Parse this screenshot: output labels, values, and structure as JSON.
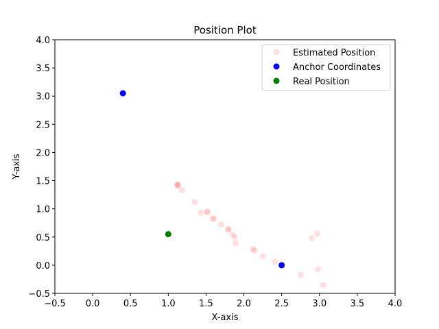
{
  "chart_data": {
    "type": "scatter",
    "title": "Position Plot",
    "xlabel": "X-axis",
    "ylabel": "Y-axis",
    "xlim": [
      -0.5,
      4.0
    ],
    "ylim": [
      -0.5,
      4.0
    ],
    "xticks": [
      "−0.5",
      "0.0",
      "0.5",
      "1.0",
      "1.5",
      "2.0",
      "2.5",
      "3.0",
      "3.5",
      "4.0"
    ],
    "yticks": [
      "−0.5",
      "0.0",
      "0.5",
      "1.0",
      "1.5",
      "2.0",
      "2.5",
      "3.0",
      "3.5",
      "4.0"
    ],
    "grid": false,
    "legend_position": "top-right",
    "series": [
      {
        "name": "Estimated Position",
        "color": "#ff0000",
        "alpha": 0.12,
        "points": [
          [
            1.12,
            1.43
          ],
          [
            1.13,
            1.42
          ],
          [
            1.12,
            1.42
          ],
          [
            1.18,
            1.33
          ],
          [
            1.35,
            1.12
          ],
          [
            1.43,
            0.93
          ],
          [
            1.51,
            0.95
          ],
          [
            1.52,
            0.94
          ],
          [
            1.59,
            0.83
          ],
          [
            1.6,
            0.82
          ],
          [
            1.7,
            0.72
          ],
          [
            1.79,
            0.64
          ],
          [
            1.8,
            0.63
          ],
          [
            1.85,
            0.54
          ],
          [
            1.88,
            0.5
          ],
          [
            1.89,
            0.39
          ],
          [
            2.12,
            0.29
          ],
          [
            2.14,
            0.26
          ],
          [
            2.25,
            0.16
          ],
          [
            2.41,
            0.06
          ],
          [
            2.75,
            -0.17
          ],
          [
            2.9,
            0.48
          ],
          [
            2.97,
            0.56
          ],
          [
            2.98,
            -0.07
          ],
          [
            3.05,
            -0.35
          ]
        ]
      },
      {
        "name": "Anchor Coordinates",
        "color": "#0000ff",
        "alpha": 1,
        "points": [
          [
            0.4,
            3.05
          ],
          [
            2.5,
            0.0
          ]
        ]
      },
      {
        "name": "Real Position",
        "color": "#008000",
        "alpha": 1,
        "points": [
          [
            1.0,
            0.55
          ]
        ]
      }
    ]
  }
}
